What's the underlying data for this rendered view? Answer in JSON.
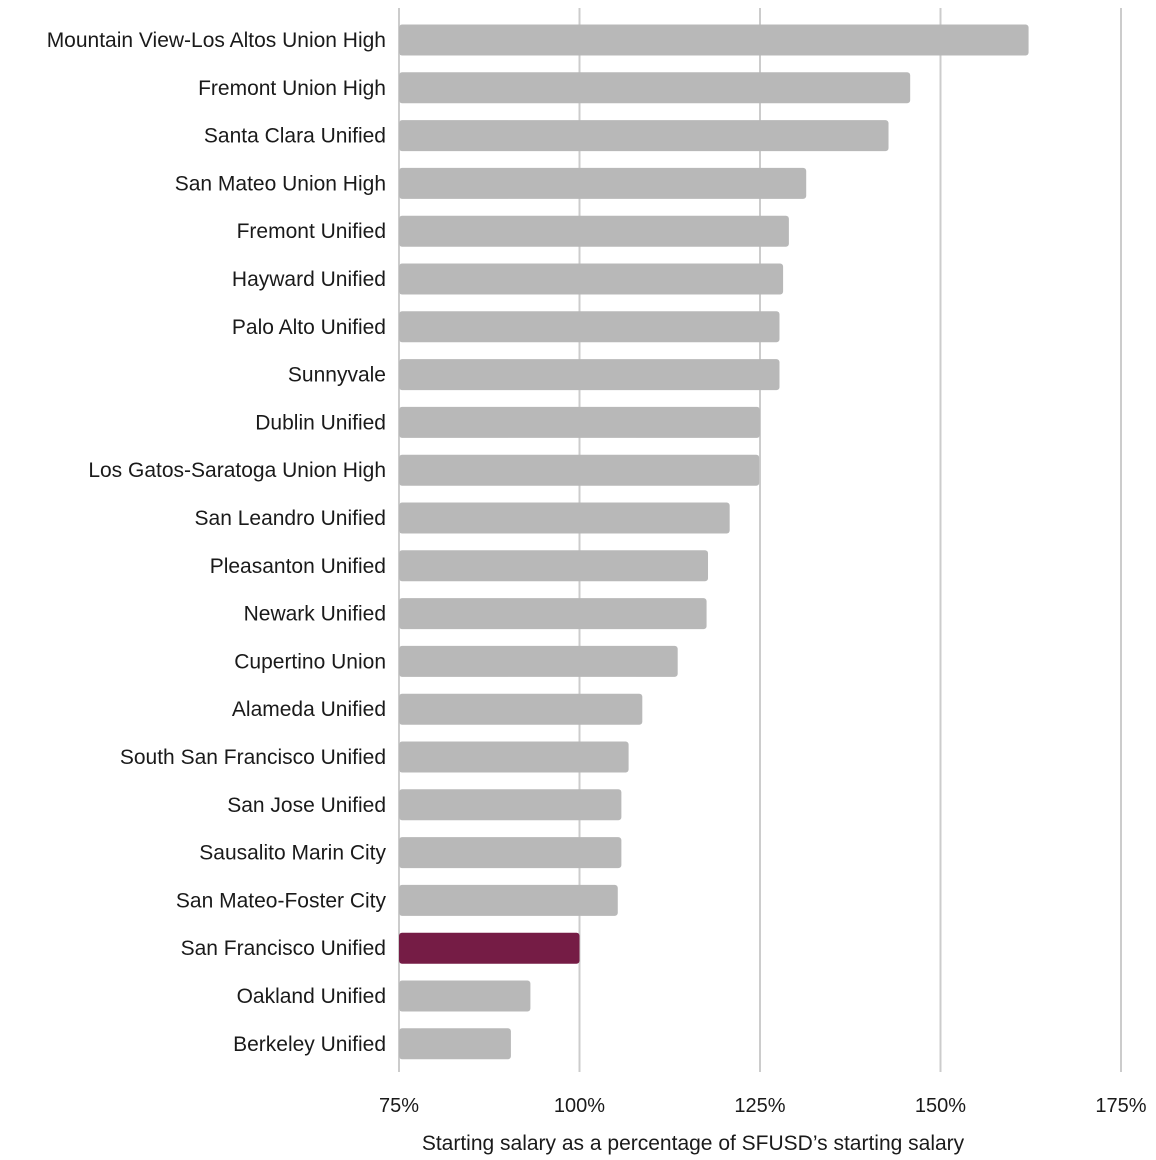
{
  "chart_data": {
    "type": "bar",
    "orientation": "horizontal",
    "categories": [
      "Mountain View-Los Altos Union High",
      "Fremont Union High",
      "Santa Clara Unified",
      "San Mateo Union High",
      "Fremont Unified",
      "Hayward Unified",
      "Palo Alto Unified",
      "Sunnyvale",
      "Dublin Unified",
      "Los Gatos-Saratoga Union High",
      "San Leandro Unified",
      "Pleasanton Unified",
      "Newark Unified",
      "Cupertino Union",
      "Alameda Unified",
      "South San Francisco Unified",
      "San Jose Unified",
      "Sausalito Marin City",
      "San Mateo-Foster City",
      "San Francisco Unified",
      "Oakland Unified",
      "Berkeley Unified"
    ],
    "values": [
      162.2,
      145.8,
      142.8,
      131.4,
      129.0,
      128.2,
      127.7,
      127.7,
      125.0,
      124.9,
      120.8,
      117.8,
      117.6,
      113.6,
      108.7,
      106.8,
      105.8,
      105.8,
      105.3,
      100.0,
      93.2,
      90.5
    ],
    "highlight_category": "San Francisco Unified",
    "bar_color": "#b8b8b8",
    "highlight_color": "#751c45",
    "xlim": [
      75,
      175
    ],
    "xticks": [
      75,
      100,
      125,
      150,
      175
    ],
    "xtick_labels": [
      "75%",
      "100%",
      "125%",
      "150%",
      "175%"
    ],
    "xlabel": "Starting salary as a percentage of SFUSD’s starting salary",
    "ylabel": "",
    "title": "",
    "grid": "vertical",
    "legend": "none"
  }
}
